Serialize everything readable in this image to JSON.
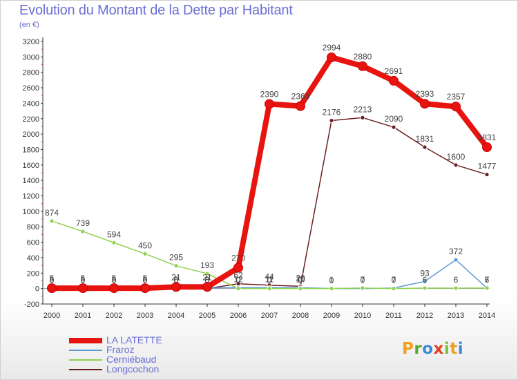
{
  "title": "Evolution du Montant de la Dette par Habitant",
  "subtitle": "(en €)",
  "logo": "Proxiti",
  "chart_data": {
    "type": "line",
    "title": "Evolution du Montant de la Dette par Habitant",
    "subtitle": "(en €)",
    "x": [
      2000,
      2001,
      2002,
      2003,
      2004,
      2005,
      2006,
      2007,
      2008,
      2009,
      2010,
      2011,
      2012,
      2013,
      2014
    ],
    "ylim": [
      -200,
      3200
    ],
    "yticks": [
      -200,
      0,
      200,
      400,
      600,
      800,
      1000,
      1200,
      1400,
      1600,
      1800,
      2000,
      2200,
      2400,
      2600,
      2800,
      3000,
      3200
    ],
    "grid": false,
    "legend_position": "bottom-left",
    "series": [
      {
        "name": "Longcochon",
        "color": "#6b1f1f",
        "values": [
          0,
          0,
          0,
          0,
          0,
          0,
          62,
          44,
          29,
          2176,
          2213,
          2090,
          1831,
          1600,
          1477
        ],
        "labels": [
          "0",
          "0",
          "0",
          "0",
          "0",
          "0",
          "62",
          "44",
          "29",
          "2176",
          "2213",
          "2090",
          "1831",
          "1600",
          "1477"
        ]
      },
      {
        "name": "Fraroz",
        "color": "#5b9bd5",
        "values": [
          5,
          5,
          5,
          5,
          6,
          8,
          12,
          11,
          10,
          1,
          0,
          7,
          93,
          372,
          6
        ],
        "labels": [
          "5",
          "5",
          "5",
          "5",
          "6",
          "8",
          "12",
          "11",
          "10",
          "1",
          "0",
          "7",
          "93",
          "372",
          "6"
        ]
      },
      {
        "name": "Cerniébaud",
        "color": "#8fd14f",
        "values": [
          874,
          739,
          594,
          450,
          295,
          193,
          0,
          0,
          0,
          0,
          7,
          0,
          6,
          6,
          7
        ],
        "labels": [
          "874",
          "739",
          "594",
          "450",
          "295",
          "193",
          "0",
          "0",
          "0",
          "0",
          "7",
          "0",
          "6",
          "6",
          "7"
        ]
      },
      {
        "name": "LA LATETTE",
        "color": "#e8140f",
        "values": [
          5,
          5,
          5,
          5,
          21,
          21,
          270,
          2390,
          2363,
          2994,
          2880,
          2691,
          2393,
          2357,
          1831
        ],
        "labels": [
          "5",
          "5",
          "5",
          "5",
          "21",
          "21",
          "270",
          "2390",
          "2363",
          "2994",
          "2880",
          "2691",
          "2393",
          "2357",
          "1831"
        ]
      }
    ],
    "legend": [
      "LA LATETTE",
      "Fraroz",
      "Cerniébaud",
      "Longcochon"
    ]
  },
  "legend_items": [
    {
      "label": "LA LATETTE",
      "color": "#e8140f",
      "thickness": 8
    },
    {
      "label": "Fraroz",
      "color": "#5b9bd5",
      "thickness": 2
    },
    {
      "label": "Cerniébaud",
      "color": "#8fd14f",
      "thickness": 2
    },
    {
      "label": "Longcochon",
      "color": "#6b1f1f",
      "thickness": 2
    }
  ]
}
